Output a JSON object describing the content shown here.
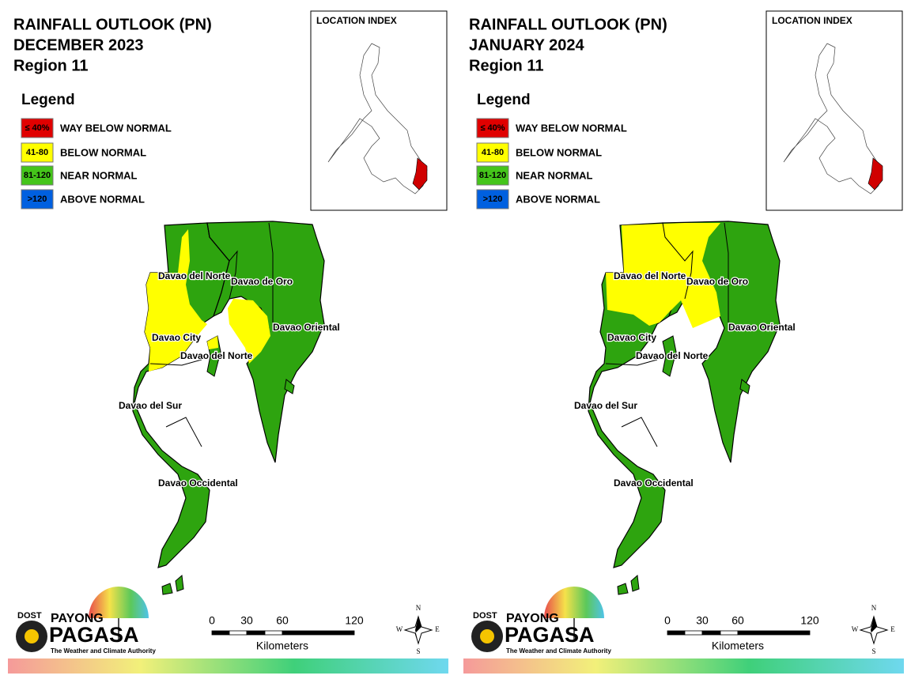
{
  "panels": [
    {
      "title": [
        "RAINFALL OUTLOOK (PN)",
        "DECEMBER 2023",
        "Region 11"
      ],
      "legend": {
        "title": "Legend",
        "items": [
          {
            "range": "≤ 40%",
            "label": "WAY BELOW NORMAL"
          },
          {
            "range": "41-80",
            "label": "BELOW NORMAL"
          },
          {
            "range": "81-120",
            "label": "NEAR NORMAL"
          },
          {
            "range": ">120",
            "label": "ABOVE NORMAL"
          }
        ]
      },
      "location_index": "LOCATION INDEX",
      "places": [
        "Davao del Norte",
        "Davao de Oro",
        "Davao Oriental",
        "Davao City",
        "Davao del Norte",
        "Davao del Sur",
        "Davao Occidental"
      ],
      "scale": {
        "ticks": [
          0,
          30,
          60,
          120
        ],
        "unit": "Kilometers"
      },
      "compass": [
        "N",
        "E",
        "S",
        "W"
      ],
      "logo": {
        "dost": "DOST",
        "payong": "PAYONG",
        "pagasa": "PAGASA",
        "tagline": "The Weather and Climate Authority"
      }
    },
    {
      "title": [
        "RAINFALL OUTLOOK (PN)",
        "JANUARY 2024",
        "Region 11"
      ],
      "legend": {
        "title": "Legend",
        "items": [
          {
            "range": "≤ 40%",
            "label": "WAY BELOW NORMAL"
          },
          {
            "range": "41-80",
            "label": "BELOW NORMAL"
          },
          {
            "range": "81-120",
            "label": "NEAR NORMAL"
          },
          {
            "range": ">120",
            "label": "ABOVE NORMAL"
          }
        ]
      },
      "location_index": "LOCATION INDEX",
      "places": [
        "Davao del Norte",
        "Davao de Oro",
        "Davao Oriental",
        "Davao City",
        "Davao del Norte",
        "Davao del Sur",
        "Davao Occidental"
      ],
      "scale": {
        "ticks": [
          0,
          30,
          60,
          120
        ],
        "unit": "Kilometers"
      },
      "compass": [
        "N",
        "E",
        "S",
        "W"
      ],
      "logo": {
        "dost": "DOST",
        "payong": "PAYONG",
        "pagasa": "PAGASA",
        "tagline": "The Weather and Climate Authority"
      }
    }
  ]
}
